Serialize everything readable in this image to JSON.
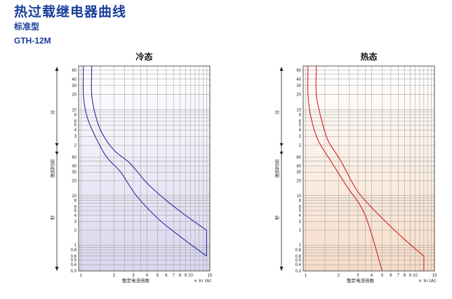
{
  "header": {
    "title": "热过载继电器曲线",
    "subtitle": "标准型",
    "model": "GTH-12M"
  },
  "chart_data": [
    {
      "type": "line",
      "title": "冷态",
      "xlabel": "整定电流倍数",
      "xunit": "× In (A)",
      "ylabel": "脱扣时间",
      "y_unit_upper": "分",
      "y_unit_lower": "秒",
      "x_scale": "log",
      "y_scale": "log",
      "xlim": [
        0.95,
        15
      ],
      "x_ticks": [
        1,
        2,
        3,
        4,
        5,
        6,
        7,
        8,
        9,
        10,
        15
      ],
      "y_ticks_seconds": [
        "0.3",
        "0.4",
        "0.5",
        "0.6",
        "0.8",
        "1",
        "2",
        "3",
        "4",
        "5",
        "6",
        "8",
        "10",
        "20",
        "30",
        "40",
        "60"
      ],
      "y_ticks_minutes": [
        "2",
        "3",
        "4",
        "5",
        "6",
        "8",
        "10",
        "20",
        "30",
        "40",
        "60"
      ],
      "line_color": "#2b2b9a",
      "background": "gradient white to lavender",
      "series": [
        {
          "points": [
            [
              1.05,
              60
            ],
            [
              1.05,
              20
            ],
            [
              1.12,
              8
            ],
            [
              1.3,
              3.5
            ],
            [
              1.7,
              1.2
            ],
            [
              2.3,
              30
            ],
            [
              3.2,
              10
            ],
            [
              5,
              3.5
            ],
            [
              8,
              1.5
            ],
            [
              14,
              0.6
            ]
          ]
        },
        {
          "points": [
            [
              1.25,
              60
            ],
            [
              1.25,
              20
            ],
            [
              1.35,
              8
            ],
            [
              1.55,
              3.5
            ],
            [
              2,
              1.6
            ],
            [
              2.8,
              45
            ],
            [
              4,
              18
            ],
            [
              6,
              8
            ],
            [
              9,
              4
            ],
            [
              14,
              2
            ]
          ]
        }
      ],
      "vertical_join_x": 14
    },
    {
      "type": "line",
      "title": "热态",
      "xlabel": "整定电流倍数",
      "xunit": "× In (A)",
      "ylabel": "脱扣时间",
      "y_unit_upper": "分",
      "y_unit_lower": "秒",
      "x_scale": "log",
      "y_scale": "log",
      "xlim": [
        0.95,
        15
      ],
      "x_ticks": [
        1,
        2,
        3,
        4,
        5,
        6,
        7,
        8,
        9,
        10,
        15
      ],
      "y_ticks_seconds": [
        "0.3",
        "0.4",
        "0.5",
        "0.6",
        "0.8",
        "1",
        "2",
        "3",
        "4",
        "5",
        "6",
        "8",
        "10",
        "20",
        "30",
        "40",
        "60"
      ],
      "y_ticks_minutes": [
        "2",
        "3",
        "4",
        "5",
        "6",
        "8",
        "10",
        "20",
        "30",
        "40",
        "60"
      ],
      "line_color": "#d42020",
      "background": "gradient white to peach",
      "series": [
        {
          "points": [
            [
              1.05,
              60
            ],
            [
              1.05,
              20
            ],
            [
              1.12,
              7
            ],
            [
              1.3,
              2.5
            ],
            [
              1.7,
              50
            ],
            [
              2.4,
              15
            ],
            [
              3.5,
              4
            ],
            [
              5,
              0.3
            ]
          ]
        },
        {
          "points": [
            [
              1.25,
              60
            ],
            [
              1.25,
              20
            ],
            [
              1.38,
              7
            ],
            [
              1.6,
              2.5
            ],
            [
              2.1,
              50
            ],
            [
              3,
              12
            ],
            [
              5,
              3.5
            ],
            [
              8,
              1.3
            ],
            [
              12,
              0.6
            ]
          ]
        }
      ],
      "vertical_join_x": 12
    }
  ]
}
